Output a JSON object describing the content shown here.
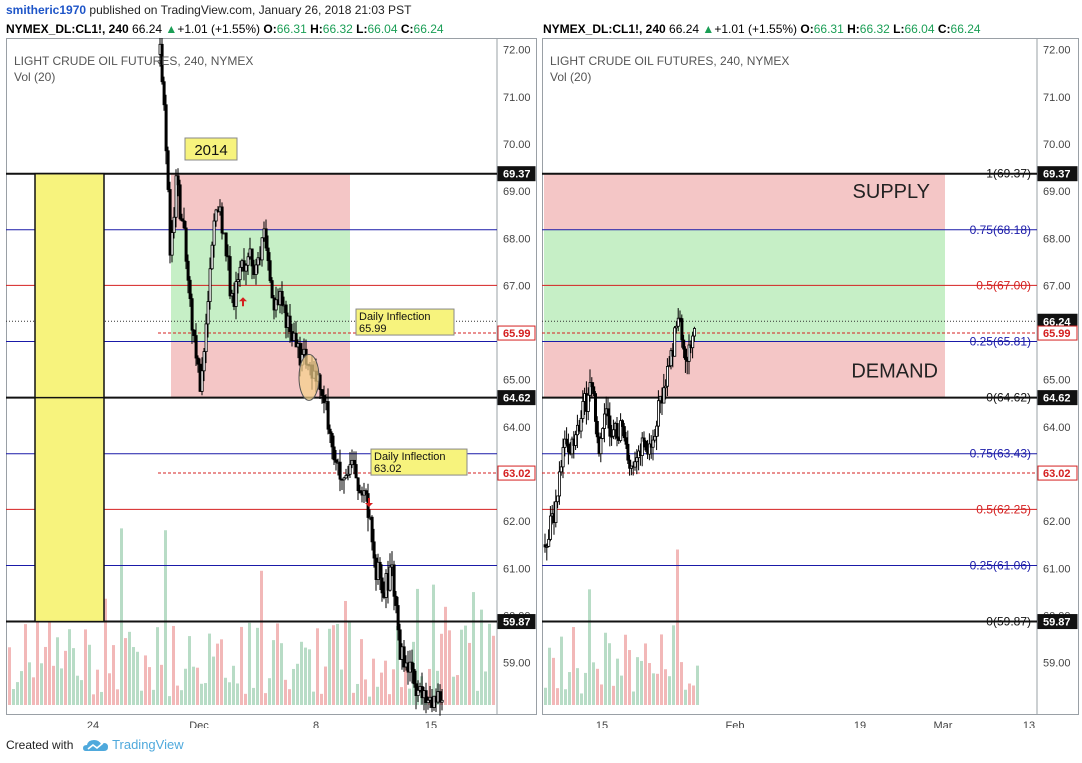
{
  "header": {
    "author": "smitheric1970",
    "published_text": "published on TradingView.com, January 26, 2018 21:03 PST"
  },
  "colors": {
    "up": "#1a9e55",
    "down": "#e03030",
    "supply_zone": "#f4c6c6",
    "green_zone": "#c6efc6",
    "highlight": "#f7f37d",
    "blue_line": "#1a1aa8",
    "red_line": "#d42020"
  },
  "footer": {
    "created_with": "Created with",
    "brand": "TradingView",
    "logo_icon": "tradingview-cloud-icon"
  },
  "chart_data": [
    {
      "type": "candlestick",
      "symbol_line": {
        "symbol": "NYMEX_DL:CL1!, 240",
        "last": "66.24",
        "change": "+1.01 (+1.55%)",
        "open": "66.31",
        "high": "66.32",
        "low": "66.04",
        "close": "66.24"
      },
      "title": "LIGHT CRUDE OIL FUTURES, 240, NYMEX",
      "subtitle": "Vol (20)",
      "ylim": [
        58.1,
        72.1
      ],
      "y_ticks": [
        "72.00",
        "71.00",
        "70.00",
        "69.00",
        "68.00",
        "67.00",
        "66.00",
        "65.00",
        "64.00",
        "63.00",
        "62.00",
        "61.00",
        "60.00",
        "59.00"
      ],
      "x_ticks": [
        "24",
        "Dec",
        "8",
        "15"
      ],
      "price_labels": [
        {
          "value": 69.37,
          "text": "69.37",
          "style": "black"
        },
        {
          "value": 65.99,
          "text": "65.99",
          "style": "red"
        },
        {
          "value": 64.62,
          "text": "64.62",
          "style": "black"
        },
        {
          "value": 63.02,
          "text": "63.02",
          "style": "red"
        },
        {
          "value": 59.87,
          "text": "59.87",
          "style": "black"
        }
      ],
      "blue_levels": [
        68.18,
        65.81,
        63.43,
        61.06
      ],
      "red_levels": [
        67.0,
        62.25
      ],
      "black_levels": [
        69.37,
        64.62,
        59.87
      ],
      "dashed_levels": [
        65.99,
        63.02
      ],
      "last_price": 66.24,
      "zones": [
        {
          "type": "supply",
          "from": 68.18,
          "to": 69.37
        },
        {
          "type": "green",
          "from": 65.81,
          "to": 68.18
        },
        {
          "type": "supply",
          "from": 64.62,
          "to": 65.81
        }
      ],
      "annotations": [
        {
          "type": "year-label",
          "text": "2014"
        },
        {
          "type": "inflection",
          "line1": "Daily Inflection",
          "line2": "65.99",
          "value": 65.99
        },
        {
          "type": "inflection",
          "line1": "Daily Inflection",
          "line2": "63.02",
          "value": 63.02
        }
      ]
    },
    {
      "type": "candlestick",
      "symbol_line": {
        "symbol": "NYMEX_DL:CL1!, 240",
        "last": "66.24",
        "change": "+1.01 (+1.55%)",
        "open": "66.31",
        "high": "66.32",
        "low": "66.04",
        "close": "66.24"
      },
      "title": "LIGHT CRUDE OIL FUTURES, 240, NYMEX",
      "subtitle": "Vol (20)",
      "ylim": [
        58.1,
        72.1
      ],
      "y_ticks": [
        "72.00",
        "71.00",
        "70.00",
        "69.00",
        "68.00",
        "67.00",
        "66.00",
        "65.00",
        "64.00",
        "63.00",
        "62.00",
        "61.00",
        "60.00",
        "59.00"
      ],
      "x_ticks": [
        "15",
        "Feb",
        "19",
        "Mar",
        "13"
      ],
      "price_labels": [
        {
          "value": 69.37,
          "text": "69.37",
          "style": "black"
        },
        {
          "value": 66.24,
          "text": "66.24",
          "style": "black"
        },
        {
          "value": 65.99,
          "text": "65.99",
          "style": "red"
        },
        {
          "value": 64.62,
          "text": "64.62",
          "style": "black"
        },
        {
          "value": 63.02,
          "text": "63.02",
          "style": "red"
        },
        {
          "value": 59.87,
          "text": "59.87",
          "style": "black"
        }
      ],
      "fib_levels": [
        {
          "value": 69.37,
          "text": "1(69.37)",
          "color": "black"
        },
        {
          "value": 68.18,
          "text": "0.75(68.18)",
          "color": "blue"
        },
        {
          "value": 67.0,
          "text": "0.5(67.00)",
          "color": "red"
        },
        {
          "value": 65.81,
          "text": "0.25(65.81)",
          "color": "blue"
        },
        {
          "value": 64.62,
          "text": "0(64.62)",
          "color": "black"
        },
        {
          "value": 63.43,
          "text": "0.75(63.43)",
          "color": "blue"
        },
        {
          "value": 62.25,
          "text": "0.5(62.25)",
          "color": "red"
        },
        {
          "value": 61.06,
          "text": "0.25(61.06)",
          "color": "blue"
        },
        {
          "value": 59.87,
          "text": "0(59.87)",
          "color": "black"
        }
      ],
      "dashed_levels": [
        65.99,
        63.02
      ],
      "last_price": 66.24,
      "zones": [
        {
          "type": "supply",
          "from": 68.18,
          "to": 69.37,
          "label": "SUPPLY"
        },
        {
          "type": "green",
          "from": 65.81,
          "to": 68.18
        },
        {
          "type": "supply",
          "from": 64.62,
          "to": 65.81,
          "label": "DEMAND"
        }
      ]
    }
  ]
}
